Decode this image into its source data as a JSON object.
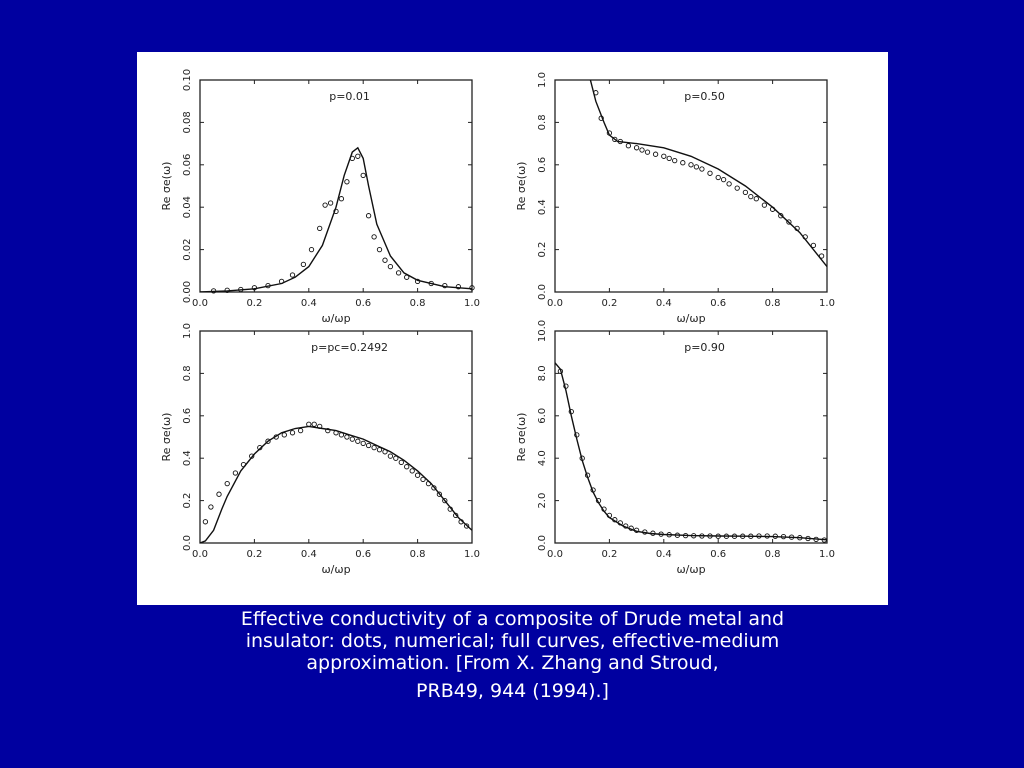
{
  "caption": {
    "line1": "Effective conductivity of a composite of Drude metal and",
    "line2": "insulator: dots, numerical; full curves, effective-medium",
    "line3": "approximation.  [From X. Zhang and Stroud,",
    "line4": "PRB49, 944 (1994).]"
  },
  "colors": {
    "background": "#0000a0",
    "panel": "#ffffff",
    "ink": "#111111",
    "caption_text": "#ffffff"
  },
  "chart_data": [
    {
      "type": "line",
      "annotation": "p=0.01",
      "xlabel": "ω/ωp",
      "ylabel": "Re σe(ω)",
      "xlim": [
        0,
        1
      ],
      "ylim": [
        0,
        0.1
      ],
      "xticks": [
        "0.0",
        "0.2",
        "0.4",
        "0.6",
        "0.8",
        "1.0"
      ],
      "yticks": [
        "0.00",
        "0.02",
        "0.04",
        "0.06",
        "0.08",
        "0.10"
      ],
      "series": [
        {
          "style": "curve",
          "x": [
            0.0,
            0.1,
            0.2,
            0.3,
            0.35,
            0.4,
            0.45,
            0.5,
            0.53,
            0.56,
            0.58,
            0.6,
            0.62,
            0.65,
            0.7,
            0.75,
            0.8,
            0.9,
            1.0
          ],
          "y": [
            0.0,
            0.0005,
            0.0015,
            0.004,
            0.007,
            0.012,
            0.022,
            0.04,
            0.055,
            0.066,
            0.068,
            0.063,
            0.05,
            0.032,
            0.017,
            0.009,
            0.0055,
            0.0025,
            0.0015
          ]
        },
        {
          "style": "dots",
          "x": [
            0.05,
            0.1,
            0.15,
            0.2,
            0.25,
            0.3,
            0.34,
            0.38,
            0.41,
            0.44,
            0.46,
            0.48,
            0.5,
            0.52,
            0.54,
            0.56,
            0.58,
            0.6,
            0.62,
            0.64,
            0.66,
            0.68,
            0.7,
            0.73,
            0.76,
            0.8,
            0.85,
            0.9,
            0.95,
            1.0
          ],
          "y": [
            0.0005,
            0.0008,
            0.0012,
            0.002,
            0.003,
            0.005,
            0.008,
            0.013,
            0.02,
            0.03,
            0.041,
            0.042,
            0.038,
            0.044,
            0.052,
            0.063,
            0.064,
            0.055,
            0.036,
            0.026,
            0.02,
            0.015,
            0.012,
            0.009,
            0.007,
            0.005,
            0.004,
            0.003,
            0.0025,
            0.002
          ]
        }
      ]
    },
    {
      "type": "line",
      "annotation": "p=0.50",
      "xlabel": "ω/ωp",
      "ylabel": "Re σe(ω)",
      "xlim": [
        0,
        1
      ],
      "ylim": [
        0,
        1
      ],
      "xticks": [
        "0.0",
        "0.2",
        "0.4",
        "0.6",
        "0.8",
        "1.0"
      ],
      "yticks": [
        "0.0",
        "0.2",
        "0.4",
        "0.6",
        "0.8",
        "1.0"
      ],
      "series": [
        {
          "style": "curve",
          "x": [
            0.13,
            0.15,
            0.18,
            0.2,
            0.23,
            0.3,
            0.4,
            0.5,
            0.6,
            0.7,
            0.8,
            0.9,
            0.95,
            1.0
          ],
          "y": [
            1.0,
            0.9,
            0.8,
            0.74,
            0.71,
            0.7,
            0.68,
            0.64,
            0.58,
            0.5,
            0.4,
            0.28,
            0.2,
            0.12
          ]
        },
        {
          "style": "dots",
          "x": [
            0.15,
            0.17,
            0.2,
            0.22,
            0.24,
            0.27,
            0.3,
            0.32,
            0.34,
            0.37,
            0.4,
            0.42,
            0.44,
            0.47,
            0.5,
            0.52,
            0.54,
            0.57,
            0.6,
            0.62,
            0.64,
            0.67,
            0.7,
            0.72,
            0.74,
            0.77,
            0.8,
            0.83,
            0.86,
            0.89,
            0.92,
            0.95,
            0.98
          ],
          "y": [
            0.94,
            0.82,
            0.75,
            0.72,
            0.71,
            0.69,
            0.68,
            0.67,
            0.66,
            0.65,
            0.64,
            0.63,
            0.62,
            0.61,
            0.6,
            0.59,
            0.58,
            0.56,
            0.54,
            0.53,
            0.51,
            0.49,
            0.47,
            0.45,
            0.44,
            0.41,
            0.39,
            0.36,
            0.33,
            0.3,
            0.26,
            0.22,
            0.17
          ]
        }
      ]
    },
    {
      "type": "line",
      "annotation": "p=pc=0.2492",
      "xlabel": "ω/ωp",
      "ylabel": "Re σe(ω)",
      "xlim": [
        0,
        1
      ],
      "ylim": [
        0,
        1
      ],
      "xticks": [
        "0.0",
        "0.2",
        "0.4",
        "0.6",
        "0.8",
        "1.0"
      ],
      "yticks": [
        "0.0",
        "0.2",
        "0.4",
        "0.6",
        "0.8",
        "1.0"
      ],
      "series": [
        {
          "style": "curve",
          "x": [
            0.0,
            0.02,
            0.05,
            0.08,
            0.1,
            0.15,
            0.2,
            0.25,
            0.3,
            0.35,
            0.4,
            0.45,
            0.5,
            0.55,
            0.6,
            0.65,
            0.7,
            0.75,
            0.8,
            0.85,
            0.9,
            0.95,
            1.0
          ],
          "y": [
            0.0,
            0.01,
            0.06,
            0.16,
            0.22,
            0.34,
            0.42,
            0.48,
            0.52,
            0.54,
            0.55,
            0.54,
            0.53,
            0.51,
            0.49,
            0.46,
            0.43,
            0.39,
            0.34,
            0.28,
            0.2,
            0.12,
            0.06
          ]
        },
        {
          "style": "dots",
          "x": [
            0.02,
            0.04,
            0.07,
            0.1,
            0.13,
            0.16,
            0.19,
            0.22,
            0.25,
            0.28,
            0.31,
            0.34,
            0.37,
            0.4,
            0.42,
            0.44,
            0.47,
            0.5,
            0.52,
            0.54,
            0.56,
            0.58,
            0.6,
            0.62,
            0.64,
            0.66,
            0.68,
            0.7,
            0.72,
            0.74,
            0.76,
            0.78,
            0.8,
            0.82,
            0.84,
            0.86,
            0.88,
            0.9,
            0.92,
            0.94,
            0.96,
            0.98
          ],
          "y": [
            0.1,
            0.17,
            0.23,
            0.28,
            0.33,
            0.37,
            0.41,
            0.45,
            0.48,
            0.5,
            0.51,
            0.52,
            0.53,
            0.56,
            0.56,
            0.55,
            0.53,
            0.52,
            0.51,
            0.5,
            0.49,
            0.48,
            0.47,
            0.46,
            0.45,
            0.44,
            0.43,
            0.41,
            0.4,
            0.38,
            0.36,
            0.34,
            0.32,
            0.3,
            0.28,
            0.26,
            0.23,
            0.2,
            0.16,
            0.13,
            0.1,
            0.08
          ]
        }
      ]
    },
    {
      "type": "line",
      "annotation": "p=0.90",
      "xlabel": "ω/ωp",
      "ylabel": "Re σe(ω)",
      "xlim": [
        0,
        1
      ],
      "ylim": [
        0,
        10
      ],
      "xticks": [
        "0.0",
        "0.2",
        "0.4",
        "0.6",
        "0.8",
        "1.0"
      ],
      "yticks": [
        "0.0",
        "2.0",
        "4.0",
        "6.0",
        "8.0",
        "10.0"
      ],
      "series": [
        {
          "style": "curve",
          "x": [
            0.0,
            0.02,
            0.04,
            0.06,
            0.08,
            0.1,
            0.12,
            0.14,
            0.16,
            0.18,
            0.2,
            0.25,
            0.3,
            0.35,
            0.4,
            0.5,
            0.6,
            0.7,
            0.8,
            0.9,
            1.0
          ],
          "y": [
            8.5,
            8.2,
            7.2,
            6.0,
            4.9,
            3.9,
            3.1,
            2.4,
            1.9,
            1.5,
            1.2,
            0.8,
            0.55,
            0.45,
            0.4,
            0.35,
            0.33,
            0.32,
            0.3,
            0.25,
            0.15
          ]
        },
        {
          "style": "dots",
          "x": [
            0.02,
            0.04,
            0.06,
            0.08,
            0.1,
            0.12,
            0.14,
            0.16,
            0.18,
            0.2,
            0.22,
            0.24,
            0.26,
            0.28,
            0.3,
            0.33,
            0.36,
            0.39,
            0.42,
            0.45,
            0.48,
            0.51,
            0.54,
            0.57,
            0.6,
            0.63,
            0.66,
            0.69,
            0.72,
            0.75,
            0.78,
            0.81,
            0.84,
            0.87,
            0.9,
            0.93,
            0.96,
            0.99
          ],
          "y": [
            8.1,
            7.4,
            6.2,
            5.1,
            4.0,
            3.2,
            2.5,
            2.0,
            1.6,
            1.3,
            1.1,
            0.95,
            0.8,
            0.7,
            0.6,
            0.52,
            0.46,
            0.42,
            0.39,
            0.37,
            0.35,
            0.34,
            0.33,
            0.33,
            0.32,
            0.32,
            0.32,
            0.32,
            0.32,
            0.33,
            0.33,
            0.32,
            0.3,
            0.28,
            0.25,
            0.21,
            0.17,
            0.14
          ]
        }
      ]
    }
  ]
}
